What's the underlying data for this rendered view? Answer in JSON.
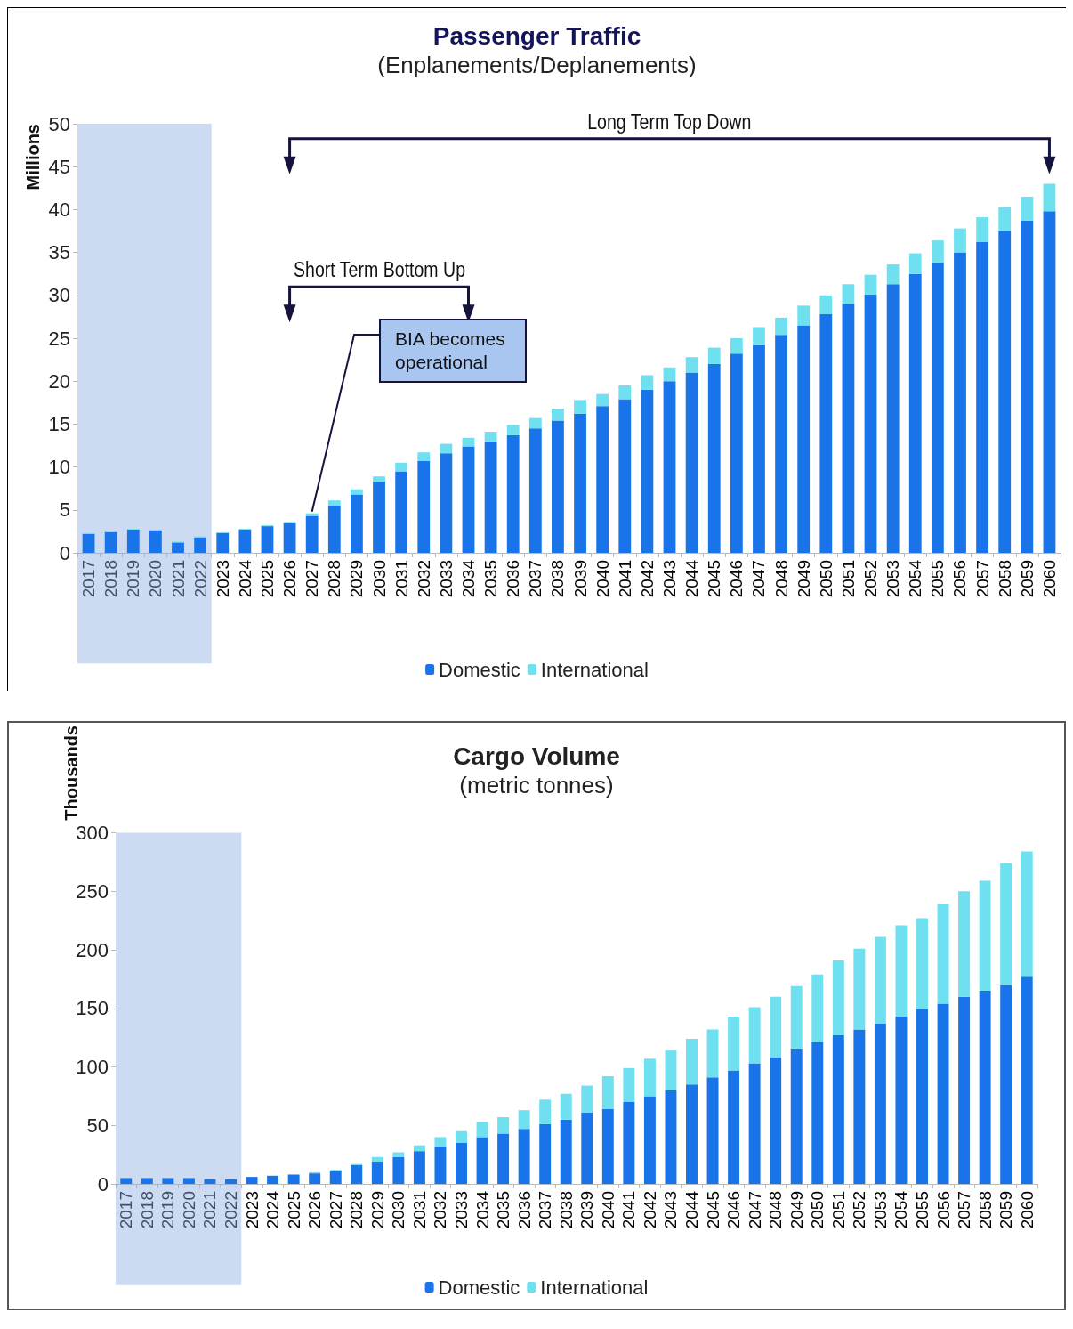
{
  "chart_data": [
    {
      "type": "bar",
      "title": "Passenger Traffic",
      "subtitle": "(Enplanements/Deplanements)",
      "ylabel": "Millions",
      "categories": [
        "2017",
        "2018",
        "2019",
        "2020",
        "2021",
        "2022",
        "2023",
        "2024",
        "2025",
        "2026",
        "2027",
        "2028",
        "2029",
        "2030",
        "2031",
        "2032",
        "2033",
        "2034",
        "2035",
        "2036",
        "2037",
        "2038",
        "2039",
        "2040",
        "2041",
        "2042",
        "2043",
        "2044",
        "2045",
        "2046",
        "2047",
        "2048",
        "2049",
        "2050",
        "2051",
        "2052",
        "2053",
        "2054",
        "2055",
        "2056",
        "2057",
        "2058",
        "2059",
        "2060"
      ],
      "series": [
        {
          "name": "Domestic",
          "color": "#1874e8",
          "values": [
            2.2,
            2.4,
            2.7,
            2.6,
            1.2,
            1.8,
            2.3,
            2.7,
            3.1,
            3.5,
            4.3,
            5.5,
            6.8,
            8.3,
            9.5,
            10.7,
            11.6,
            12.4,
            13.0,
            13.7,
            14.5,
            15.4,
            16.2,
            17.1,
            17.9,
            19.0,
            20.0,
            21.0,
            22.0,
            23.2,
            24.2,
            25.4,
            26.5,
            27.8,
            29.0,
            30.1,
            31.3,
            32.5,
            33.8,
            35.0,
            36.2,
            37.5,
            38.7,
            39.8
          ]
        },
        {
          "name": "International",
          "color": "#6ee0f0",
          "values": [
            0.1,
            0.1,
            0.1,
            0.1,
            0.1,
            0.1,
            0.1,
            0.1,
            0.1,
            0.1,
            0.3,
            0.6,
            0.6,
            0.6,
            1.0,
            1.0,
            1.1,
            1.0,
            1.1,
            1.2,
            1.2,
            1.4,
            1.6,
            1.4,
            1.6,
            1.7,
            1.6,
            1.8,
            1.9,
            1.8,
            2.1,
            2.0,
            2.3,
            2.2,
            2.3,
            2.3,
            2.3,
            2.4,
            2.6,
            2.8,
            2.9,
            2.8,
            2.8,
            3.2
          ]
        }
      ],
      "stacked": true,
      "ylim": [
        0,
        50
      ],
      "yticks": [
        0,
        5,
        10,
        15,
        20,
        25,
        30,
        35,
        40,
        45,
        50
      ],
      "grid": false,
      "legend": "bottom",
      "bands": [
        {
          "axis": "x",
          "from": "2017",
          "to": "2022",
          "color": "#8fb0e0"
        }
      ],
      "annotations": [
        "Long Term Top Down",
        "Short Term Bottom Up",
        {
          "text": "BIA becomes operational",
          "x": "2027",
          "y": 4.6
        }
      ]
    },
    {
      "type": "bar",
      "title": "Cargo Volume",
      "subtitle": "(metric tonnes)",
      "ylabel": "Thousands",
      "categories": [
        "2017",
        "2018",
        "2019",
        "2020",
        "2021",
        "2022",
        "2023",
        "2024",
        "2025",
        "2026",
        "2027",
        "2028",
        "2029",
        "2030",
        "2031",
        "2032",
        "2033",
        "2034",
        "2035",
        "2036",
        "2037",
        "2038",
        "2039",
        "2040",
        "2041",
        "2042",
        "2043",
        "2044",
        "2045",
        "2046",
        "2047",
        "2048",
        "2049",
        "2050",
        "2051",
        "2052",
        "2053",
        "2054",
        "2055",
        "2056",
        "2057",
        "2058",
        "2059",
        "2060"
      ],
      "series": [
        {
          "name": "Domestic",
          "color": "#1874e8",
          "values": [
            5,
            5,
            5,
            5,
            4,
            4,
            6,
            7,
            8,
            9,
            11,
            16,
            19,
            23,
            28,
            32,
            35,
            40,
            43,
            47,
            51,
            55,
            61,
            64,
            70,
            75,
            80,
            85,
            91,
            97,
            103,
            108,
            115,
            121,
            127,
            132,
            137,
            143,
            149,
            154,
            160,
            165,
            170,
            177
          ]
        },
        {
          "name": "International",
          "color": "#6ee0f0",
          "values": [
            0,
            0,
            0,
            0,
            0,
            0,
            0,
            0,
            0,
            1,
            1,
            1,
            4,
            4,
            5,
            8,
            10,
            13,
            14,
            16,
            21,
            22,
            23,
            28,
            29,
            32,
            34,
            39,
            41,
            46,
            48,
            52,
            54,
            58,
            64,
            69,
            74,
            78,
            78,
            85,
            90,
            94,
            104,
            107
          ]
        }
      ],
      "stacked": true,
      "ylim": [
        0,
        300
      ],
      "yticks": [
        0,
        50,
        100,
        150,
        200,
        250,
        300
      ],
      "grid": false,
      "legend": "bottom",
      "bands": [
        {
          "axis": "x",
          "from": "2017",
          "to": "2022",
          "color": "#8fb0e0"
        }
      ]
    }
  ]
}
